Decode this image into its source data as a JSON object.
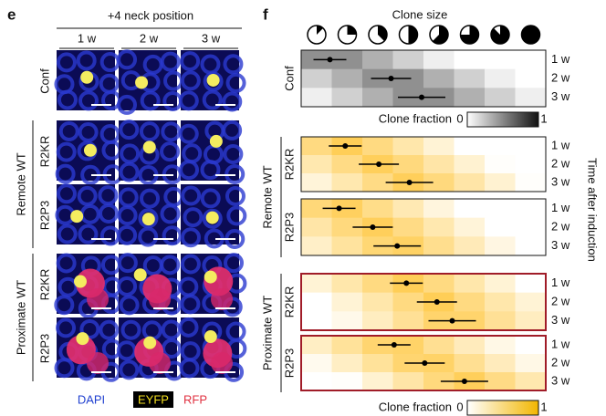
{
  "panel_e": {
    "label": "e",
    "title": "+4 neck position",
    "columns": [
      "1 w",
      "2 w",
      "3 w"
    ],
    "rows": [
      "Conf",
      "R2KR",
      "R2P3",
      "R2KR",
      "R2P3"
    ],
    "groups": [
      "Remote WT",
      "Proximate WT"
    ],
    "legend": [
      "DAPI",
      "EYFP",
      "RFP"
    ]
  },
  "panel_f": {
    "label": "f",
    "title": "Clone size",
    "heatmaps": [
      {
        "name": "Conf",
        "times": [
          "1 w",
          "2 w",
          "3 w"
        ]
      },
      {
        "name": "R2KR",
        "times": [
          "1 w",
          "2 w",
          "3 w"
        ]
      },
      {
        "name": "R2P3",
        "times": [
          "1 w",
          "2 w",
          "3 w"
        ]
      },
      {
        "name": "R2KR",
        "times": [
          "1 w",
          "2 w",
          "3 w"
        ]
      },
      {
        "name": "R2P3",
        "times": [
          "1 w",
          "2 w",
          "3 w"
        ]
      }
    ],
    "groups": [
      "Remote WT",
      "Proximate WT"
    ],
    "colorbars": [
      {
        "label": "Clone fraction",
        "ticks": [
          0,
          1
        ]
      },
      {
        "label": "Clone fraction",
        "ticks": [
          0,
          1
        ]
      }
    ],
    "side_label": "Time after induction"
  }
}
